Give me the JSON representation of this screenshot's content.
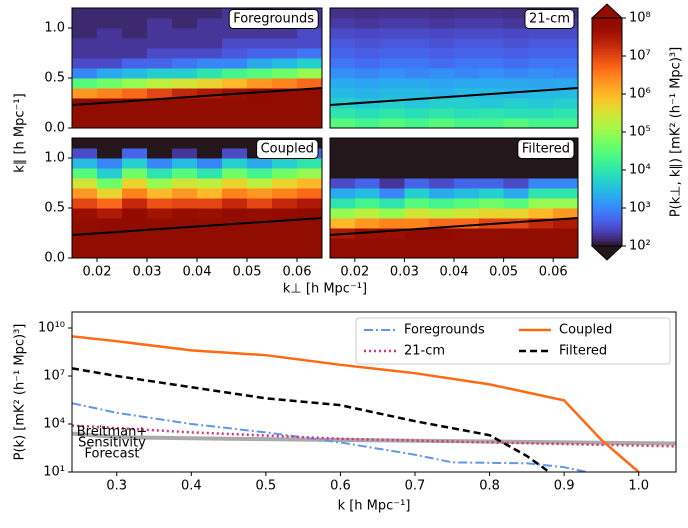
{
  "heatmap_axes": {
    "xlabel": "k⊥ [h Mpc⁻¹]",
    "ylabel": "k∥ [h Mpc⁻¹]"
  },
  "colorbar": {
    "label": "P(k⊥, k∥) [mK² (h⁻¹ Mpc)³]",
    "colormap": "turbo",
    "scale": "log",
    "lim": [
      100,
      100000000
    ],
    "ticks": [
      {
        "value": 100,
        "label": "10²"
      },
      {
        "value": 1000,
        "label": "10³"
      },
      {
        "value": 10000,
        "label": "10⁴"
      },
      {
        "value": 100000,
        "label": "10⁵"
      },
      {
        "value": 1000000,
        "label": "10⁶"
      },
      {
        "value": 10000000,
        "label": "10⁷"
      },
      {
        "value": 100000000,
        "label": "10⁸"
      }
    ]
  },
  "chart_data": [
    {
      "type": "heatmap",
      "label": "Foregrounds",
      "xlim": [
        0.015,
        0.065
      ],
      "ylim": [
        0,
        1.2
      ],
      "yticks": [
        {
          "value": 0,
          "label": "0.0"
        },
        0.5,
        {
          "value": 1,
          "label": "1.0"
        }
      ],
      "horizon": {
        "x": [
          0.015,
          0.065
        ],
        "y": [
          0.23,
          0.4
        ]
      },
      "z": [
        [
          100000000.0,
          100000000.0,
          100000000.0,
          100000000.0,
          100000000.0,
          100000000.0,
          100000000.0,
          100000000.0,
          100000000.0,
          100000000.0
        ],
        [
          100000000.0,
          100000000.0,
          100000000.0,
          100000000.0,
          100000000.0,
          100000000.0,
          100000000.0,
          100000000.0,
          100000000.0,
          100000000.0
        ],
        [
          80000000.0,
          100000000.0,
          100000000.0,
          100000000.0,
          100000000.0,
          100000000.0,
          100000000.0,
          100000000.0,
          100000000.0,
          100000000.0
        ],
        [
          2000000.0,
          3000000.0,
          5000000.0,
          10000000.0,
          20000000.0,
          30000000.0,
          50000000.0,
          80000000.0,
          100000000.0,
          100000000.0
        ],
        [
          30000.0,
          50000.0,
          100000.0,
          200000.0,
          300000.0,
          500000.0,
          1000000.0,
          2000000.0,
          3000000.0,
          5000000.0
        ],
        [
          1000.0,
          2000.0,
          3000.0,
          5000.0,
          5000.0,
          10000.0,
          20000.0,
          30000.0,
          50000.0,
          100000.0
        ],
        [
          300.0,
          300.0,
          500.0,
          500.0,
          700.0,
          1000.0,
          1000.0,
          2000.0,
          3000.0,
          5000.0
        ],
        [
          200.0,
          200.0,
          200.0,
          300.0,
          300.0,
          300.0,
          400.0,
          500.0,
          500.0,
          700.0
        ],
        [
          200.0,
          200.0,
          200.0,
          200.0,
          200.0,
          200.0,
          300.0,
          300.0,
          300.0,
          300.0
        ],
        [
          150.0,
          200.0,
          150.0,
          200.0,
          200.0,
          200.0,
          200.0,
          200.0,
          200.0,
          300.0
        ],
        [
          150.0,
          150.0,
          150.0,
          200.0,
          150.0,
          200.0,
          200.0,
          200.0,
          200.0,
          200.0
        ],
        [
          150.0,
          150.0,
          150.0,
          150.0,
          150.0,
          150.0,
          200.0,
          150.0,
          200.0,
          200.0
        ]
      ]
    },
    {
      "type": "heatmap",
      "label": "21-cm",
      "xlim": [
        0.015,
        0.065
      ],
      "ylim": [
        0,
        1.2
      ],
      "horizon": {
        "x": [
          0.015,
          0.065
        ],
        "y": [
          0.23,
          0.4
        ]
      },
      "z": [
        [
          30000.0,
          20000.0,
          30000.0,
          20000.0,
          30000.0,
          20000.0,
          20000.0,
          30000.0,
          20000.0,
          20000.0
        ],
        [
          10000.0,
          8000.0,
          10000.0,
          8000.0,
          10000.0,
          8000.0,
          10000.0,
          8000.0,
          8000.0,
          10000.0
        ],
        [
          5000.0,
          4000.0,
          5000.0,
          4000.0,
          5000.0,
          5000.0,
          4000.0,
          5000.0,
          4000.0,
          5000.0
        ],
        [
          3000.0,
          2500.0,
          3000.0,
          3000.0,
          2500.0,
          3000.0,
          3000.0,
          2500.0,
          3000.0,
          3000.0
        ],
        [
          2000.0,
          1800.0,
          2000.0,
          2000.0,
          1800.0,
          2000.0,
          2000.0,
          2000.0,
          1800.0,
          2000.0
        ],
        [
          1200.0,
          1000.0,
          1200.0,
          1000.0,
          1200.0,
          1000.0,
          1200.0,
          1000.0,
          1200.0,
          1000.0
        ],
        [
          700.0,
          600.0,
          700.0,
          700.0,
          600.0,
          700.0,
          700.0,
          600.0,
          700.0,
          700.0
        ],
        [
          500.0,
          450.0,
          500.0,
          500.0,
          450.0,
          500.0,
          500.0,
          450.0,
          500.0,
          500.0
        ],
        [
          400.0,
          350.0,
          400.0,
          400.0,
          350.0,
          400.0,
          400.0,
          350.0,
          400.0,
          400.0
        ],
        [
          300.0,
          280.0,
          300.0,
          300.0,
          280.0,
          300.0,
          300.0,
          280.0,
          300.0,
          300.0
        ],
        [
          220.0,
          200.0,
          220.0,
          220.0,
          200.0,
          220.0,
          220.0,
          200.0,
          220.0,
          220.0
        ],
        [
          180.0,
          170.0,
          180.0,
          180.0,
          170.0,
          180.0,
          180.0,
          170.0,
          180.0,
          180.0
        ]
      ]
    },
    {
      "type": "heatmap",
      "label": "Coupled",
      "xlim": [
        0.015,
        0.065
      ],
      "ylim": [
        0,
        1.2
      ],
      "xticks": [
        0.02,
        0.03,
        0.04,
        0.05,
        0.06
      ],
      "yticks": [
        {
          "value": 0,
          "label": "0.0"
        },
        0.5,
        {
          "value": 1,
          "label": "1.0"
        }
      ],
      "horizon": {
        "x": [
          0.015,
          0.065
        ],
        "y": [
          0.23,
          0.4
        ]
      },
      "z": [
        [
          100000000.0,
          100000000.0,
          100000000.0,
          100000000.0,
          100000000.0,
          100000000.0,
          100000000.0,
          100000000.0,
          100000000.0,
          100000000.0
        ],
        [
          100000000.0,
          100000000.0,
          100000000.0,
          100000000.0,
          100000000.0,
          100000000.0,
          100000000.0,
          100000000.0,
          100000000.0,
          100000000.0
        ],
        [
          100000000.0,
          100000000.0,
          100000000.0,
          100000000.0,
          100000000.0,
          100000000.0,
          100000000.0,
          100000000.0,
          100000000.0,
          100000000.0
        ],
        [
          100000000.0,
          80000000.0,
          100000000.0,
          100000000.0,
          100000000.0,
          100000000.0,
          100000000.0,
          100000000.0,
          100000000.0,
          100000000.0
        ],
        [
          50000000.0,
          30000000.0,
          80000000.0,
          40000000.0,
          60000000.0,
          50000000.0,
          80000000.0,
          60000000.0,
          70000000.0,
          80000000.0
        ],
        [
          10000000.0,
          5000000.0,
          20000000.0,
          8000000.0,
          10000000.0,
          10000000.0,
          20000000.0,
          10000000.0,
          20000000.0,
          30000000.0
        ],
        [
          2000000.0,
          500000.0,
          3000000.0,
          1000000.0,
          2000000.0,
          1000000.0,
          3000000.0,
          2000000.0,
          3000000.0,
          5000000.0
        ],
        [
          300000.0,
          50000.0,
          500000.0,
          100000.0,
          300000.0,
          200000.0,
          500000.0,
          200000.0,
          500000.0,
          1000000.0
        ],
        [
          30000.0,
          5000.0,
          50000.0,
          10000.0,
          30000.0,
          10000.0,
          50000.0,
          20000.0,
          50000.0,
          100000.0
        ],
        [
          3000.0,
          1000.0,
          5000.0,
          1000.0,
          3000.0,
          1000.0,
          5000.0,
          2000.0,
          5000.0,
          10000.0
        ],
        [
          300.0,
          100.0,
          500.0,
          100.0,
          200.0,
          100.0,
          300.0,
          100.0,
          300.0,
          500.0
        ],
        [
          100.0,
          100.0,
          100.0,
          100.0,
          100.0,
          100.0,
          100.0,
          100.0,
          100.0,
          100.0
        ]
      ]
    },
    {
      "type": "heatmap",
      "label": "Filtered",
      "xlim": [
        0.015,
        0.065
      ],
      "ylim": [
        0,
        1.2
      ],
      "xticks": [
        0.02,
        0.03,
        0.04,
        0.05,
        0.06
      ],
      "horizon": {
        "x": [
          0.015,
          0.065
        ],
        "y": [
          0.23,
          0.4
        ]
      },
      "z": [
        [
          100000000.0,
          100000000.0,
          100000000.0,
          100000000.0,
          100000000.0,
          100000000.0,
          100000000.0,
          100000000.0,
          100000000.0,
          100000000.0
        ],
        [
          100000000.0,
          100000000.0,
          100000000.0,
          100000000.0,
          100000000.0,
          100000000.0,
          100000000.0,
          100000000.0,
          100000000.0,
          100000000.0
        ],
        [
          30000000.0,
          50000000.0,
          50000000.0,
          80000000.0,
          80000000.0,
          100000000.0,
          100000000.0,
          100000000.0,
          100000000.0,
          100000000.0
        ],
        [
          1000000.0,
          2000000.0,
          3000000.0,
          3000000.0,
          5000000.0,
          5000000.0,
          10000000.0,
          10000000.0,
          20000000.0,
          30000000.0
        ],
        [
          100000.0,
          200000.0,
          100000.0,
          300000.0,
          200000.0,
          300000.0,
          500000.0,
          500000.0,
          1000000.0,
          2000000.0
        ],
        [
          10000.0,
          20000.0,
          10000.0,
          30000.0,
          20000.0,
          30000.0,
          50000.0,
          30000.0,
          100000.0,
          100000.0
        ],
        [
          2000.0,
          3000.0,
          1000.0,
          5000.0,
          2000.0,
          3000.0,
          5000.0,
          2000.0,
          10000.0,
          10000.0
        ],
        [
          300.0,
          500.0,
          200.0,
          500.0,
          300.0,
          500.0,
          500.0,
          300.0,
          1000.0,
          1000.0
        ],
        [
          100.0,
          100.0,
          100.0,
          100.0,
          100.0,
          100.0,
          100.0,
          100.0,
          100.0,
          100.0
        ],
        [
          100.0,
          100.0,
          100.0,
          100.0,
          100.0,
          100.0,
          100.0,
          100.0,
          100.0,
          100.0
        ],
        [
          100.0,
          100.0,
          100.0,
          100.0,
          100.0,
          100.0,
          100.0,
          100.0,
          100.0,
          100.0
        ],
        [
          100.0,
          100.0,
          100.0,
          100.0,
          100.0,
          100.0,
          100.0,
          100.0,
          100.0,
          100.0
        ]
      ]
    },
    {
      "type": "line",
      "xlabel": "k [h Mpc⁻¹]",
      "ylabel": "P(k) [mK² (h⁻¹ Mpc)³]",
      "xlim": [
        0.24,
        1.05
      ],
      "ylim": [
        10,
        100000000000
      ],
      "yscale": "log",
      "xticks": [
        0.3,
        0.4,
        0.5,
        0.6,
        0.7,
        0.8,
        0.9,
        {
          "value": 1,
          "label": "1.0"
        }
      ],
      "yticks": [
        {
          "value": 10,
          "label": "10¹"
        },
        {
          "value": 10000,
          "label": "10⁴"
        },
        {
          "value": 10000000,
          "label": "10⁷"
        },
        {
          "value": 10000000000,
          "label": "10¹⁰"
        }
      ],
      "legend": "upper right",
      "annotation": [
        "Breitman+",
        "Sensitivity",
        "Forecast"
      ],
      "series": [
        {
          "color": "#aaaaaa",
          "style": "solid",
          "linewidth": 4,
          "x": [
            0.24,
            0.3,
            0.45,
            0.6,
            0.8,
            1.05
          ],
          "values": [
            2500,
            1500,
            1200,
            1000,
            800,
            600
          ]
        },
        {
          "name": "Foregrounds",
          "color": "#6495ed",
          "style": "dashdot",
          "linewidth": 2,
          "x": [
            0.24,
            0.3,
            0.4,
            0.5,
            0.6,
            0.7,
            0.75,
            0.85,
            0.9,
            0.93
          ],
          "values": [
            200000,
            50000,
            10000,
            3000,
            700,
            120,
            40,
            35,
            20,
            10
          ]
        },
        {
          "name": "21-cm",
          "color": "#d6337a",
          "style": "dotted",
          "linewidth": 2.5,
          "x": [
            0.24,
            0.4,
            0.6,
            0.8,
            1.05
          ],
          "values": [
            8000,
            3000,
            1200,
            700,
            400
          ]
        },
        {
          "name": "Coupled",
          "color": "#ff6a13",
          "style": "solid",
          "linewidth": 2.5,
          "x": [
            0.24,
            0.3,
            0.4,
            0.5,
            0.6,
            0.7,
            0.8,
            0.9,
            0.95,
            1.0
          ],
          "values": [
            3000000000,
            1500000000,
            400000000,
            200000000,
            50000000,
            15000000,
            3000000,
            300000,
            1000,
            10
          ]
        },
        {
          "name": "Filtered",
          "color": "#000000",
          "style": "dashed",
          "linewidth": 2.5,
          "x": [
            0.24,
            0.3,
            0.4,
            0.5,
            0.6,
            0.7,
            0.8,
            0.85,
            0.88
          ],
          "values": [
            30000000,
            10000000,
            2000000,
            400000,
            150000,
            15000,
            2000,
            100,
            10
          ]
        }
      ]
    }
  ]
}
